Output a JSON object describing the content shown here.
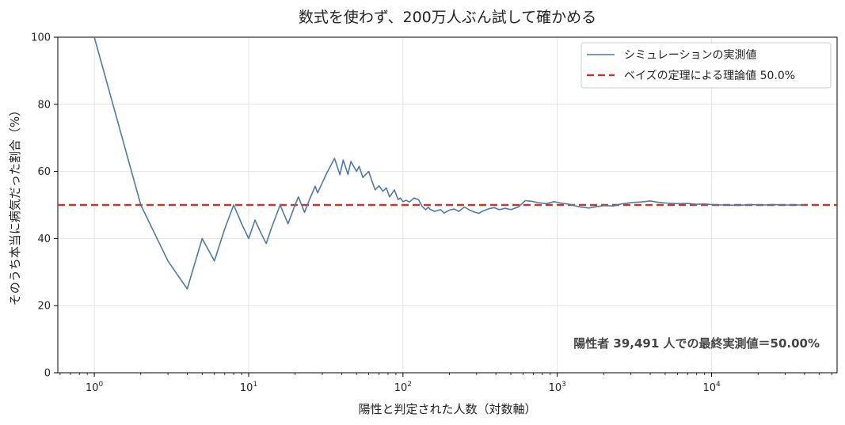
{
  "chart_data": {
    "type": "line",
    "title": "数式を使わず、200万人ぶん試して確かめる",
    "xlabel": "陽性と判定された人数（対数軸）",
    "ylabel": "そのうち本当に病気だった割合（%）",
    "x_scale": "log",
    "xlim": [
      0.58,
      65000
    ],
    "ylim": [
      0,
      100
    ],
    "x_ticks": [
      {
        "base": "10",
        "exp": "0",
        "value": 1
      },
      {
        "base": "10",
        "exp": "1",
        "value": 10
      },
      {
        "base": "10",
        "exp": "2",
        "value": 100
      },
      {
        "base": "10",
        "exp": "3",
        "value": 1000
      },
      {
        "base": "10",
        "exp": "4",
        "value": 10000
      }
    ],
    "y_ticks": [
      "0",
      "20",
      "40",
      "60",
      "80",
      "100"
    ],
    "grid": true,
    "legend_position": "top-right",
    "series": [
      {
        "name": "シミュレーションの実測値",
        "color": "#4e79a7",
        "style": "solid",
        "x": [
          1,
          2,
          3,
          4,
          5,
          6,
          7,
          8,
          9,
          10,
          11,
          12,
          13,
          14,
          16,
          18,
          20,
          21,
          23,
          25,
          27,
          28,
          32,
          36,
          39,
          41,
          44,
          46,
          50,
          52,
          55,
          60,
          63,
          66,
          70,
          74,
          78,
          82,
          88,
          93,
          96,
          100,
          105,
          110,
          118,
          126,
          133,
          140,
          146,
          150,
          160,
          175,
          185,
          200,
          215,
          230,
          250,
          270,
          290,
          310,
          330,
          360,
          390,
          420,
          460,
          500,
          560,
          620,
          680,
          750,
          850,
          950,
          1050,
          1200,
          1400,
          1600,
          1800,
          2000,
          2300,
          2600,
          3000,
          3500,
          4000,
          4500,
          5000,
          6000,
          7000,
          8000,
          9000,
          10000,
          12000,
          15000,
          18000,
          22000,
          26000,
          30000,
          35000,
          39491
        ],
        "y": [
          100,
          50,
          33.3,
          25,
          40,
          33.3,
          42.9,
          50,
          44.4,
          40,
          45.5,
          41.7,
          38.5,
          42.9,
          50,
          44.4,
          50,
          52.4,
          47.8,
          52,
          55.6,
          53.6,
          59.4,
          63.9,
          59,
          63.4,
          59.1,
          63,
          60,
          61.5,
          58.2,
          60,
          57.1,
          54.5,
          55.7,
          54.1,
          55.1,
          52.4,
          54.5,
          51.6,
          52.1,
          51,
          51.4,
          50.9,
          52.1,
          51.6,
          49.6,
          48.6,
          49.3,
          48.7,
          48.1,
          48.6,
          47.6,
          48.5,
          48.8,
          48.1,
          49.4,
          48.5,
          47.9,
          47.5,
          48.2,
          48.9,
          49.2,
          48.6,
          49,
          48.6,
          49.4,
          51.3,
          51.1,
          50.7,
          50.4,
          51,
          50.6,
          50.2,
          49.4,
          49.1,
          49.5,
          49.8,
          49.7,
          50.3,
          50.7,
          50.9,
          51.2,
          50.8,
          50.6,
          50.4,
          50.5,
          50.2,
          50.3,
          50.1,
          50,
          49.9,
          50.1,
          50,
          50.1,
          50,
          50,
          50
        ]
      },
      {
        "name": "ベイズの定理による理論値 50.0%",
        "color": "#c0392b",
        "style": "dashed",
        "y_constant": 50
      }
    ],
    "annotation": "陽性者 39,491 人での最終実測値＝50.00%"
  }
}
